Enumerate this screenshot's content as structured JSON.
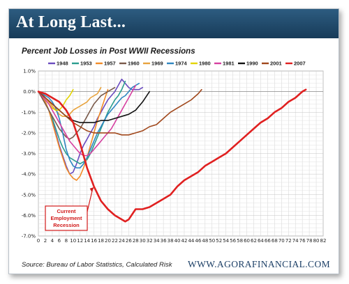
{
  "header": {
    "title": "At Long Last..."
  },
  "footer": {
    "source": "Source: Bureau of Labor Statistics, Calculated Risk",
    "website": "WWW.AGORAFINANCIAL.COM"
  },
  "chart_data": {
    "type": "line",
    "title": "Percent Job Losses in Post WWII Recessions",
    "xlim": [
      0,
      82
    ],
    "ylim": [
      -7,
      1
    ],
    "x_ticks": [
      "0",
      "2",
      "4",
      "6",
      "8",
      "10",
      "12",
      "14",
      "16",
      "18",
      "20",
      "22",
      "24",
      "26",
      "28",
      "30",
      "32",
      "34",
      "36",
      "38",
      "40",
      "42",
      "44",
      "46",
      "48",
      "50",
      "52",
      "54",
      "56",
      "58",
      "60",
      "62",
      "64",
      "66",
      "68",
      "70",
      "72",
      "74",
      "76",
      "78",
      "80",
      "82"
    ],
    "y_ticks": [
      "1.0%",
      "0.0%",
      "-1.0%",
      "-2.0%",
      "-3.0%",
      "-4.0%",
      "-5.0%",
      "-6.0%",
      "-7.0%"
    ],
    "grid": true,
    "legend_position": "top",
    "annotation": {
      "lines": [
        "Current",
        "Employment",
        "Recession"
      ],
      "target_series": "2007",
      "target_x": 16,
      "target_y": -4.6
    },
    "series": [
      {
        "name": "1948",
        "color": "#6a4bbf",
        "x": [
          0,
          1,
          2,
          3,
          4,
          5,
          6,
          7,
          8,
          9,
          10,
          11,
          12,
          13,
          14,
          15,
          16,
          17,
          18,
          19,
          20,
          21,
          22,
          23,
          24,
          25,
          26,
          27,
          28,
          29,
          30
        ],
        "y": [
          0,
          -0.2,
          -0.5,
          -0.9,
          -1.4,
          -2.0,
          -2.6,
          -3.1,
          -3.6,
          -4.0,
          -3.9,
          -3.5,
          -3.0,
          -2.6,
          -2.3,
          -2.0,
          -1.7,
          -1.3,
          -1.0,
          -0.7,
          -0.4,
          -0.2,
          0.0,
          0.3,
          0.6,
          0.4,
          0.2,
          0.1,
          0.1,
          0.1,
          0.2
        ]
      },
      {
        "name": "1953",
        "color": "#2a9d8f",
        "x": [
          0,
          1,
          2,
          3,
          4,
          5,
          6,
          7,
          8,
          9,
          10,
          11,
          12,
          13,
          14,
          15,
          16,
          17,
          18,
          19,
          20,
          21,
          22,
          23,
          24,
          25
        ],
        "y": [
          0,
          -0.2,
          -0.5,
          -0.9,
          -1.3,
          -1.8,
          -2.3,
          -2.7,
          -3.0,
          -3.2,
          -3.3,
          -3.4,
          -3.5,
          -3.4,
          -3.3,
          -3.0,
          -2.6,
          -2.2,
          -1.8,
          -1.4,
          -1.0,
          -0.7,
          -0.4,
          -0.2,
          0.1,
          0.5
        ]
      },
      {
        "name": "1957",
        "color": "#f28c28",
        "x": [
          0,
          1,
          2,
          3,
          4,
          5,
          6,
          7,
          8,
          9,
          10,
          11,
          12,
          13,
          14,
          15,
          16,
          17,
          18,
          19,
          20
        ],
        "y": [
          0,
          -0.2,
          -0.5,
          -0.9,
          -1.5,
          -2.1,
          -2.7,
          -3.2,
          -3.7,
          -4.0,
          -4.2,
          -4.3,
          -4.1,
          -3.7,
          -3.2,
          -2.6,
          -2.0,
          -1.4,
          -0.9,
          -0.4,
          0.1
        ]
      },
      {
        "name": "1960",
        "color": "#7a5a4a",
        "x": [
          0,
          1,
          2,
          3,
          4,
          5,
          6,
          7,
          8,
          9,
          10,
          11,
          12,
          13,
          14,
          15,
          16,
          17,
          18,
          19,
          20,
          21,
          22
        ],
        "y": [
          0,
          -0.3,
          -0.6,
          -0.9,
          -1.2,
          -1.5,
          -1.8,
          -2.0,
          -2.2,
          -2.3,
          -2.2,
          -2.0,
          -1.8,
          -1.5,
          -1.2,
          -0.9,
          -0.6,
          -0.4,
          -0.2,
          -0.1,
          0.0,
          0.1,
          0.2
        ]
      },
      {
        "name": "1969",
        "color": "#e8a33d",
        "x": [
          0,
          1,
          2,
          3,
          4,
          5,
          6,
          7,
          8,
          9,
          10,
          11,
          12,
          13,
          14,
          15,
          16,
          17,
          18
        ],
        "y": [
          0,
          -0.1,
          -0.3,
          -0.5,
          -0.7,
          -0.9,
          -1.1,
          -1.2,
          -1.2,
          -1.1,
          -0.9,
          -0.8,
          -0.7,
          -0.6,
          -0.5,
          -0.3,
          -0.2,
          -0.1,
          0.2
        ]
      },
      {
        "name": "1974",
        "color": "#2e86c1",
        "x": [
          0,
          1,
          2,
          3,
          4,
          5,
          6,
          7,
          8,
          9,
          10,
          11,
          12,
          13,
          14,
          15,
          16,
          17,
          18,
          19,
          20,
          21,
          22,
          23,
          24,
          25,
          26,
          27,
          28,
          29
        ],
        "y": [
          0,
          -0.1,
          -0.2,
          -0.3,
          -0.5,
          -0.8,
          -1.3,
          -2.0,
          -2.8,
          -3.3,
          -3.6,
          -3.7,
          -3.7,
          -3.5,
          -3.2,
          -2.8,
          -2.4,
          -2.0,
          -1.7,
          -1.4,
          -1.1,
          -0.9,
          -0.7,
          -0.5,
          -0.3,
          -0.2,
          0.0,
          0.2,
          0.3,
          0.4
        ]
      },
      {
        "name": "1980",
        "color": "#e3d400",
        "x": [
          0,
          1,
          2,
          3,
          4,
          5,
          6,
          7,
          8,
          9,
          10
        ],
        "y": [
          0,
          -0.2,
          -0.4,
          -0.6,
          -0.8,
          -0.9,
          -0.9,
          -0.7,
          -0.4,
          -0.2,
          0.1
        ]
      },
      {
        "name": "1981",
        "color": "#d63fa0",
        "x": [
          0,
          1,
          2,
          3,
          4,
          5,
          6,
          7,
          8,
          9,
          10,
          11,
          12,
          13,
          14,
          15,
          16,
          17,
          18,
          19,
          20,
          21,
          22,
          23,
          24,
          25,
          26,
          27,
          28
        ],
        "y": [
          0,
          -0.2,
          -0.4,
          -0.6,
          -0.9,
          -1.2,
          -1.5,
          -1.8,
          -2.1,
          -2.4,
          -2.6,
          -2.8,
          -3.0,
          -3.1,
          -3.1,
          -3.0,
          -2.8,
          -2.6,
          -2.4,
          -2.2,
          -2.0,
          -1.8,
          -1.5,
          -1.2,
          -0.9,
          -0.6,
          -0.3,
          0.0,
          0.3
        ]
      },
      {
        "name": "1990",
        "color": "#111111",
        "x": [
          0,
          2,
          4,
          6,
          8,
          10,
          12,
          14,
          16,
          18,
          20,
          22,
          24,
          26,
          28,
          30,
          32
        ],
        "y": [
          0,
          -0.3,
          -0.6,
          -0.9,
          -1.2,
          -1.4,
          -1.5,
          -1.5,
          -1.5,
          -1.4,
          -1.4,
          -1.3,
          -1.2,
          -1.1,
          -0.9,
          -0.5,
          0.0
        ]
      },
      {
        "name": "2001",
        "color": "#a0471b",
        "x": [
          0,
          2,
          4,
          6,
          8,
          10,
          12,
          14,
          16,
          18,
          20,
          22,
          24,
          26,
          28,
          30,
          32,
          34,
          36,
          38,
          40,
          42,
          44,
          46,
          47
        ],
        "y": [
          0,
          -0.3,
          -0.6,
          -0.9,
          -1.2,
          -1.5,
          -1.7,
          -1.9,
          -2.0,
          -2.0,
          -2.0,
          -2.0,
          -2.1,
          -2.1,
          -2.0,
          -1.9,
          -1.7,
          -1.6,
          -1.3,
          -1.0,
          -0.8,
          -0.6,
          -0.4,
          -0.1,
          0.1
        ]
      },
      {
        "name": "2007",
        "color": "#e02020",
        "x": [
          0,
          2,
          4,
          6,
          8,
          10,
          12,
          14,
          16,
          18,
          20,
          22,
          24,
          25,
          26,
          28,
          30,
          32,
          34,
          36,
          38,
          40,
          42,
          44,
          46,
          48,
          50,
          52,
          54,
          56,
          58,
          60,
          62,
          64,
          66,
          68,
          70,
          72,
          74,
          76,
          77
        ],
        "y": [
          0,
          -0.1,
          -0.3,
          -0.5,
          -0.9,
          -1.5,
          -2.5,
          -3.7,
          -4.6,
          -5.3,
          -5.7,
          -6.0,
          -6.2,
          -6.3,
          -6.2,
          -5.7,
          -5.7,
          -5.6,
          -5.4,
          -5.2,
          -5.0,
          -4.6,
          -4.3,
          -4.1,
          -3.9,
          -3.6,
          -3.4,
          -3.2,
          -3.0,
          -2.7,
          -2.4,
          -2.1,
          -1.8,
          -1.5,
          -1.3,
          -1.0,
          -0.8,
          -0.5,
          -0.3,
          0.0,
          0.1
        ]
      }
    ]
  }
}
